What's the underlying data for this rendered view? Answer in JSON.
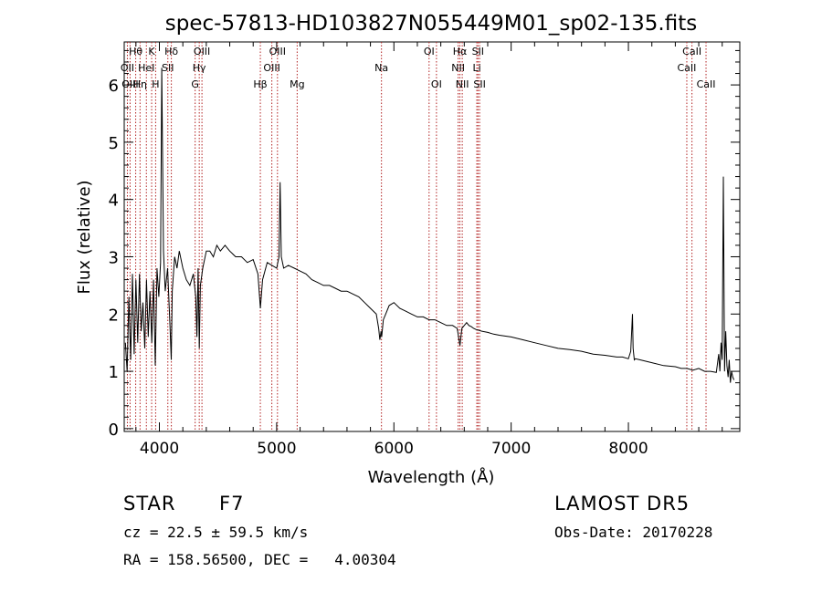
{
  "chart_data": {
    "type": "line",
    "title": "spec-57813-HD103827N055449M01_sp02-135.fits",
    "xlabel": "Wavelength (Å)",
    "ylabel": "Flux (relative)",
    "xlim": [
      3700,
      8950
    ],
    "ylim": [
      -0.05,
      6.75
    ],
    "x_ticks": [
      4000,
      5000,
      6000,
      7000,
      8000
    ],
    "y_ticks": [
      0,
      1,
      2,
      3,
      4,
      5,
      6
    ],
    "grid": false,
    "line_color": "#000000",
    "marker_color": "#b22222",
    "series": [
      {
        "x": [
          3710,
          3725,
          3740,
          3755,
          3770,
          3785,
          3800,
          3815,
          3830,
          3845,
          3860,
          3875,
          3890,
          3905,
          3920,
          3935,
          3950,
          3965,
          3980,
          3995,
          4010,
          4020,
          4035,
          4050,
          4070,
          4090,
          4101,
          4110,
          4130,
          4150,
          4170,
          4200,
          4230,
          4260,
          4290,
          4310,
          4320,
          4330,
          4340,
          4350,
          4370,
          4400,
          4430,
          4460,
          4490,
          4520,
          4560,
          4600,
          4650,
          4700,
          4750,
          4800,
          4840,
          4861,
          4880,
          4920,
          4960,
          5000,
          5010,
          5020,
          5030,
          5040,
          5060,
          5100,
          5150,
          5200,
          5250,
          5300,
          5350,
          5400,
          5450,
          5500,
          5550,
          5600,
          5650,
          5700,
          5750,
          5800,
          5850,
          5870,
          5880,
          5890,
          5896,
          5910,
          5930,
          5960,
          6000,
          6050,
          6100,
          6150,
          6200,
          6250,
          6300,
          6350,
          6400,
          6450,
          6500,
          6540,
          6563,
          6580,
          6600,
          6620,
          6640,
          6660,
          6680,
          6700,
          6750,
          6800,
          6850,
          6900,
          7000,
          7100,
          7200,
          7300,
          7400,
          7500,
          7600,
          7700,
          7800,
          7900,
          7950,
          8000,
          8020,
          8035,
          8040,
          8050,
          8060,
          8100,
          8200,
          8300,
          8400,
          8450,
          8500,
          8550,
          8600,
          8650,
          8700,
          8750,
          8770,
          8780,
          8790,
          8800,
          8810,
          8820,
          8830,
          8840,
          8850,
          8860,
          8870,
          8880,
          8890,
          8900
        ],
        "y": [
          1.5,
          1.0,
          2.3,
          1.2,
          2.7,
          1.3,
          2.6,
          1.5,
          2.7,
          1.7,
          2.2,
          1.4,
          2.6,
          1.6,
          2.4,
          1.5,
          2.6,
          1.1,
          2.8,
          2.3,
          2.9,
          6.3,
          3.1,
          2.4,
          2.8,
          1.8,
          1.2,
          2.4,
          3.0,
          2.8,
          3.1,
          2.8,
          2.6,
          2.5,
          2.7,
          2.3,
          1.6,
          2.8,
          1.4,
          2.5,
          2.8,
          3.1,
          3.1,
          3.0,
          3.2,
          3.1,
          3.2,
          3.1,
          3.0,
          3.0,
          2.9,
          2.95,
          2.7,
          2.1,
          2.6,
          2.9,
          2.85,
          2.8,
          2.9,
          3.0,
          4.3,
          3.0,
          2.8,
          2.85,
          2.8,
          2.75,
          2.7,
          2.6,
          2.55,
          2.5,
          2.5,
          2.45,
          2.4,
          2.4,
          2.35,
          2.3,
          2.2,
          2.1,
          2.0,
          1.75,
          1.55,
          1.7,
          1.6,
          1.9,
          2.0,
          2.15,
          2.2,
          2.1,
          2.05,
          2.0,
          1.95,
          1.95,
          1.9,
          1.9,
          1.85,
          1.8,
          1.8,
          1.75,
          1.45,
          1.75,
          1.8,
          1.85,
          1.8,
          1.78,
          1.75,
          1.73,
          1.7,
          1.68,
          1.65,
          1.63,
          1.6,
          1.55,
          1.5,
          1.45,
          1.4,
          1.38,
          1.35,
          1.3,
          1.28,
          1.25,
          1.25,
          1.22,
          1.35,
          2.0,
          1.4,
          1.2,
          1.22,
          1.2,
          1.15,
          1.1,
          1.08,
          1.05,
          1.05,
          1.02,
          1.05,
          1.0,
          1.0,
          0.98,
          1.3,
          1.0,
          1.5,
          1.2,
          4.4,
          1.0,
          1.7,
          1.1,
          0.9,
          1.2,
          0.8,
          1.0,
          0.9,
          0.85
        ]
      }
    ],
    "annotations": [
      {
        "label": "Hθ",
        "x": 3798,
        "row": 0
      },
      {
        "label": "OII",
        "x": 3727,
        "row": 1
      },
      {
        "label": "OIII",
        "x": 3750,
        "row": 2
      },
      {
        "label": "Hη",
        "x": 3835,
        "row": 2
      },
      {
        "label": "HeI",
        "x": 3889,
        "row": 1
      },
      {
        "label": "K",
        "x": 3934,
        "row": 0
      },
      {
        "label": "H",
        "x": 3968,
        "row": 2
      },
      {
        "label": "Hδ",
        "x": 4102,
        "row": 0
      },
      {
        "label": "SII",
        "x": 4072,
        "row": 1
      },
      {
        "label": "OIII",
        "x": 4363,
        "row": 0
      },
      {
        "label": "Hγ",
        "x": 4340,
        "row": 1
      },
      {
        "label": "G",
        "x": 4305,
        "row": 2
      },
      {
        "label": "Hβ",
        "x": 4861,
        "row": 2
      },
      {
        "label": "OIII",
        "x": 5007,
        "row": 0
      },
      {
        "label": "OIII",
        "x": 4959,
        "row": 1
      },
      {
        "label": "Mg",
        "x": 5175,
        "row": 2
      },
      {
        "label": "Na",
        "x": 5894,
        "row": 1
      },
      {
        "label": "OI",
        "x": 6300,
        "row": 0
      },
      {
        "label": "OI",
        "x": 6363,
        "row": 2
      },
      {
        "label": "Hα",
        "x": 6563,
        "row": 0
      },
      {
        "label": "NII",
        "x": 6548,
        "row": 1
      },
      {
        "label": "NII",
        "x": 6583,
        "row": 2
      },
      {
        "label": "SII",
        "x": 6717,
        "row": 0
      },
      {
        "label": "Li",
        "x": 6707,
        "row": 1
      },
      {
        "label": "SII",
        "x": 6731,
        "row": 2
      },
      {
        "label": "CaII",
        "x": 8542,
        "row": 0
      },
      {
        "label": "CaII",
        "x": 8498,
        "row": 1
      },
      {
        "label": "CaII",
        "x": 8662,
        "row": 2
      }
    ]
  },
  "info": {
    "object_class": "STAR",
    "subclass": "F7",
    "survey": "LAMOST DR5",
    "redshift": "cz = 22.5 ± 59.5 km/s",
    "obs_date": "Obs-Date: 20170228",
    "coords": "RA = 158.56500, DEC =   4.00304"
  }
}
